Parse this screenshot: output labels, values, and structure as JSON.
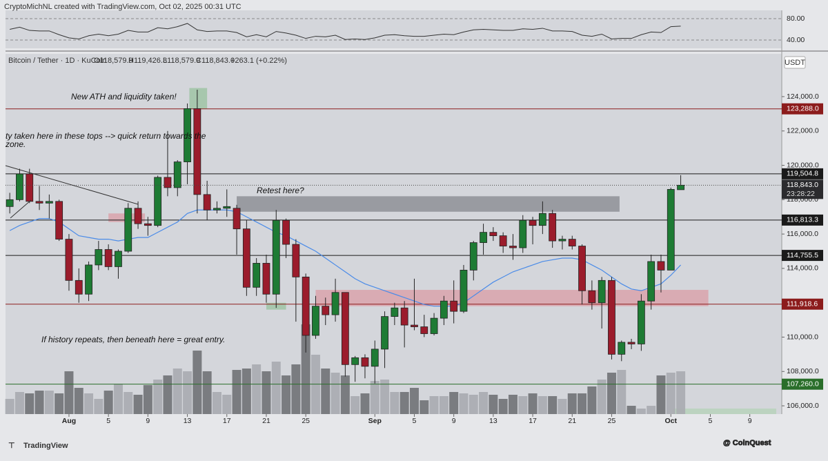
{
  "header": "CryptoMichNL created with TradingView.com, Oct 02, 2025 00:31 UTC",
  "legend": {
    "symbol": "Bitcoin / Tether · 1D · KuCoin",
    "open": "O118,579.9",
    "high": "H119,426.3",
    "low": "L118,579.9",
    "close": "C118,843.0",
    "change": "+263.1 (+0.22%)"
  },
  "currency": "USDT",
  "footer": {
    "brand": "TradingView",
    "watermark": "@ CoinQuest"
  },
  "chart_data": {
    "type": "candlestick",
    "x": [
      -6,
      -5,
      -4,
      -3,
      -2,
      -1,
      0,
      1,
      2,
      3,
      4,
      5,
      6,
      7,
      8,
      9,
      10,
      11,
      12,
      13,
      14,
      15,
      16,
      17,
      18,
      19,
      20,
      21,
      22,
      23,
      24,
      25,
      26,
      27,
      28,
      29,
      30,
      31,
      32,
      33,
      34,
      35,
      36,
      37,
      38,
      39,
      40,
      41,
      42,
      43,
      44,
      45,
      46,
      47,
      48,
      49,
      50,
      51,
      52,
      53,
      54,
      55,
      56,
      57,
      58,
      59,
      60,
      61,
      62
    ],
    "ohlc": [
      [
        117600,
        118400,
        117200,
        118000
      ],
      [
        118000,
        119800,
        117900,
        119500
      ],
      [
        119500,
        119800,
        117800,
        117900
      ],
      [
        117900,
        118800,
        117400,
        117800
      ],
      [
        117800,
        118300,
        116900,
        117900
      ],
      [
        117900,
        118000,
        115600,
        115700
      ],
      [
        115700,
        116000,
        112700,
        113300
      ],
      [
        113300,
        114000,
        112000,
        112500
      ],
      [
        112500,
        114400,
        112100,
        114200
      ],
      [
        114200,
        115600,
        113900,
        115100
      ],
      [
        115100,
        115400,
        113900,
        114100
      ],
      [
        114100,
        115100,
        113400,
        115000
      ],
      [
        115000,
        117800,
        114900,
        117500
      ],
      [
        117500,
        117900,
        116300,
        116600
      ],
      [
        116600,
        117000,
        115900,
        116500
      ],
      [
        116500,
        119400,
        116400,
        119300
      ],
      [
        119300,
        122000,
        118200,
        118700
      ],
      [
        118700,
        120300,
        118200,
        120200
      ],
      [
        120200,
        123600,
        118900,
        123300
      ],
      [
        123300,
        124400,
        117200,
        118300
      ],
      [
        118300,
        119100,
        116800,
        117400
      ],
      [
        117400,
        117900,
        117200,
        117500
      ],
      [
        117500,
        118600,
        117000,
        117600
      ],
      [
        117500,
        117700,
        114800,
        116300
      ],
      [
        116300,
        116800,
        112400,
        112900
      ],
      [
        112900,
        114600,
        112400,
        114300
      ],
      [
        114300,
        114800,
        112000,
        112500
      ],
      [
        112500,
        117400,
        111700,
        116800
      ],
      [
        116800,
        116900,
        114600,
        115400
      ],
      [
        115400,
        115700,
        110900,
        113500
      ],
      [
        113500,
        113700,
        109100,
        110100
      ],
      [
        110100,
        112400,
        109900,
        111800
      ],
      [
        111800,
        112300,
        110700,
        111300
      ],
      [
        111300,
        113400,
        110900,
        112600
      ],
      [
        112600,
        112600,
        107700,
        108400
      ],
      [
        108400,
        108900,
        107400,
        108800
      ],
      [
        108800,
        109000,
        107600,
        108300
      ],
      [
        108300,
        109800,
        107300,
        109300
      ],
      [
        109300,
        111500,
        108200,
        111200
      ],
      [
        111200,
        112000,
        110700,
        111700
      ],
      [
        111700,
        112100,
        109400,
        110700
      ],
      [
        110700,
        113400,
        110400,
        110600
      ],
      [
        110600,
        111300,
        110000,
        110200
      ],
      [
        110200,
        111400,
        110100,
        111100
      ],
      [
        111100,
        112400,
        110700,
        112100
      ],
      [
        112100,
        113300,
        110800,
        111500
      ],
      [
        111500,
        114200,
        111400,
        113900
      ],
      [
        113900,
        115600,
        113300,
        115500
      ],
      [
        115500,
        116600,
        114800,
        116100
      ],
      [
        116100,
        116400,
        115600,
        115900
      ],
      [
        115900,
        116100,
        114900,
        115300
      ],
      [
        115300,
        116000,
        114500,
        115200
      ],
      [
        115200,
        117100,
        114900,
        116800
      ],
      [
        116800,
        117000,
        115400,
        116500
      ],
      [
        116500,
        117900,
        116000,
        117200
      ],
      [
        117200,
        117400,
        115200,
        115600
      ],
      [
        115600,
        115900,
        115100,
        115700
      ],
      [
        115700,
        115900,
        115100,
        115300
      ],
      [
        115300,
        115400,
        111900,
        112700
      ],
      [
        112700,
        113300,
        111600,
        112000
      ],
      [
        112000,
        113500,
        110500,
        113300
      ],
      [
        113300,
        113500,
        108700,
        109000
      ],
      [
        109000,
        109800,
        108600,
        109700
      ],
      [
        109700,
        109900,
        109300,
        109600
      ],
      [
        109600,
        112500,
        109200,
        112100
      ],
      [
        112100,
        114800,
        111600,
        114400
      ],
      [
        114400,
        114800,
        112600,
        113900
      ],
      [
        113900,
        118700,
        113900,
        118600
      ],
      [
        118579.9,
        119426.3,
        118579.9,
        118843.0
      ]
    ],
    "ma": [
      116200,
      116500,
      116700,
      116900,
      116900,
      116700,
      116300,
      115900,
      115800,
      115700,
      115700,
      115600,
      115700,
      115800,
      115800,
      116100,
      116400,
      116700,
      117200,
      117400,
      117400,
      117400,
      117400,
      117300,
      117000,
      116700,
      116400,
      116100,
      115900,
      115600,
      115300,
      115000,
      114600,
      114200,
      113800,
      113400,
      113100,
      112900,
      112700,
      112500,
      112300,
      112100,
      111900,
      111800,
      111800,
      111800,
      112000,
      112400,
      112800,
      113200,
      113500,
      113800,
      114000,
      114200,
      114400,
      114500,
      114600,
      114600,
      114500,
      114200,
      113900,
      113500,
      113100,
      112800,
      112700,
      112900,
      113100,
      113600,
      114200
    ],
    "volume": [
      22,
      32,
      30,
      34,
      34,
      30,
      62,
      38,
      30,
      22,
      34,
      44,
      32,
      28,
      42,
      50,
      56,
      66,
      62,
      92,
      62,
      32,
      28,
      64,
      66,
      72,
      62,
      76,
      56,
      72,
      130,
      86,
      66,
      60,
      56,
      26,
      30,
      48,
      50,
      32,
      32,
      38,
      20,
      26,
      26,
      32,
      30,
      28,
      32,
      28,
      22,
      28,
      26,
      30,
      26,
      26,
      22,
      30,
      30,
      40,
      50,
      60,
      64,
      12,
      8,
      12,
      56,
      60,
      62
    ],
    "rsi": [
      60,
      64,
      58,
      57,
      57,
      50,
      44,
      42,
      48,
      51,
      48,
      51,
      58,
      55,
      55,
      63,
      61,
      65,
      71,
      59,
      56,
      57,
      57,
      54,
      46,
      50,
      46,
      56,
      53,
      49,
      43,
      47,
      46,
      49,
      41,
      42,
      41,
      44,
      49,
      50,
      48,
      47,
      47,
      49,
      51,
      50,
      55,
      59,
      60,
      59,
      58,
      58,
      61,
      60,
      62,
      57,
      57,
      56,
      49,
      47,
      51,
      42,
      43,
      43,
      50,
      55,
      54,
      65,
      66
    ],
    "rsi_ylim": [
      24.5,
      95.5
    ],
    "rsi_ticks": [
      {
        "value": 80,
        "label": "80.00"
      },
      {
        "value": 40,
        "label": "40.00"
      }
    ],
    "xlim": [
      -6.43,
      72.03
    ],
    "xticks": [
      {
        "value": 0,
        "label": "Aug"
      },
      {
        "value": 4,
        "label": "5"
      },
      {
        "value": 8,
        "label": "9"
      },
      {
        "value": 12,
        "label": "13"
      },
      {
        "value": 16,
        "label": "17"
      },
      {
        "value": 20,
        "label": "21"
      },
      {
        "value": 24,
        "label": "25"
      },
      {
        "value": 31,
        "label": "Sep"
      },
      {
        "value": 35,
        "label": "5"
      },
      {
        "value": 39,
        "label": "9"
      },
      {
        "value": 43,
        "label": "13"
      },
      {
        "value": 47,
        "label": "17"
      },
      {
        "value": 51,
        "label": "21"
      },
      {
        "value": 55,
        "label": "25"
      },
      {
        "value": 61,
        "label": "Oct"
      },
      {
        "value": 65,
        "label": "5"
      },
      {
        "value": 69,
        "label": "9"
      }
    ],
    "ylim": [
      105520,
      126490
    ],
    "yticks": [
      {
        "value": 124000,
        "label": "124,000.0"
      },
      {
        "value": 122000,
        "label": "122,000.0"
      },
      {
        "value": 120000,
        "label": "120,000.0"
      },
      {
        "value": 118000,
        "label": "118,000.0"
      },
      {
        "value": 116000,
        "label": "116,000.0"
      },
      {
        "value": 114000,
        "label": "114,000.0"
      },
      {
        "value": 112000,
        "label": "112,000.0"
      },
      {
        "value": 110000,
        "label": "110,000.0"
      },
      {
        "value": 108000,
        "label": "108,000.0"
      },
      {
        "value": 106000,
        "label": "106,000.0"
      }
    ],
    "levels": [
      {
        "value": 123288,
        "label": "123,288.0",
        "color": "#8c1c1c"
      },
      {
        "value": 119504.8,
        "label": "119,504.8",
        "color": "#1a1a1a"
      },
      {
        "value": 116813.3,
        "label": "116,813.3",
        "color": "#1a1a1a"
      },
      {
        "value": 114755.5,
        "label": "114,755.5",
        "color": "#1a1a1a"
      },
      {
        "value": 111918.6,
        "label": "111,918.6",
        "color": "#8c1c1c"
      },
      {
        "value": 107260,
        "label": "107,260.0",
        "color": "#2a6e2a"
      }
    ],
    "last_price": {
      "value": 118843.0,
      "label": "118,843.0",
      "countdown": "23:28:22"
    },
    "zones": [
      {
        "low": 117300,
        "high": 118200,
        "from": 17,
        "to": 55.8,
        "color": "#8e9096"
      },
      {
        "low": 111800,
        "high": 112750,
        "from": 25,
        "to": 64.8,
        "color": "#d9a3ab"
      },
      {
        "low": 116700,
        "high": 117200,
        "from": 4,
        "to": 7.7,
        "color": "#d9a3ab"
      },
      {
        "low": 123300,
        "high": 124500,
        "from": 12.2,
        "to": 14,
        "color": "#9fc4a4"
      },
      {
        "low": 111600,
        "high": 112000,
        "from": 20,
        "to": 22,
        "color": "#9fc4a4"
      }
    ],
    "up_color": "#1e7b34",
    "down_color": "#9b1c2c",
    "ma_color": "#4a8be8",
    "rsi_color": "#333333",
    "annotations": [
      "New ATH and liquidity taken!",
      "ty taken here in these tops --> quick return towards the",
      "zone.",
      "Retest here?",
      "If history repeats, then beneath here = great entry."
    ]
  }
}
